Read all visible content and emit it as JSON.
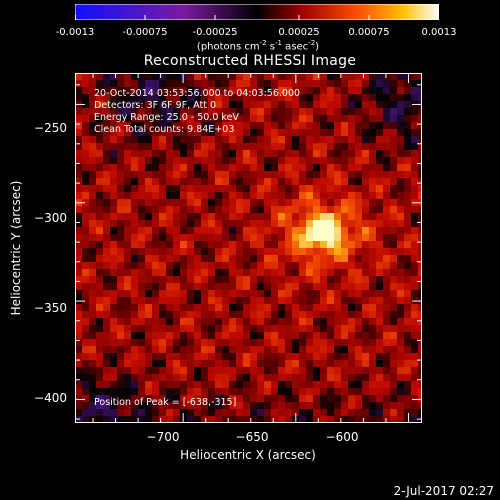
{
  "colorbar": {
    "ticks": [
      "-0.0013",
      "-0.00075",
      "-0.00025",
      "0.00025",
      "0.00075",
      "0.0013"
    ],
    "units_text": "(photons cm",
    "units_sup1": "-2",
    "units_mid": " s",
    "units_sup2": "-1",
    "units_end": " asec",
    "units_sup3": "-2",
    "units_close": ")",
    "range": [
      -0.0013,
      0.0013
    ]
  },
  "annotations": {
    "time_range": "20-Oct-2014 03:53:56.000 to 04:03:56.000",
    "detectors": "Detectors: 3F 6F 9F, Att 0",
    "energy": "Energy Range: 25.0 - 50.0 keV",
    "clean": "Clean    Total counts: 9.84E+03",
    "peak": "Position of Peak = [-638,-315]"
  },
  "footer": "2-Jul-2017 02:27",
  "chart_data": {
    "type": "heatmap",
    "title": "Reconstructed RHESSI Image",
    "xlabel": "Heliocentric X (arcsec)",
    "ylabel": "Heliocentric Y (arcsec)",
    "xlim": [
      -748,
      -594
    ],
    "ylim": [
      -412,
      -234
    ],
    "xticks": [
      -700,
      -650,
      -600
    ],
    "yticks": [
      -250,
      -300,
      -350,
      -400
    ],
    "xtick_labels": [
      "−700",
      "−650",
      "−600"
    ],
    "ytick_labels": [
      "−250",
      "−300",
      "−350",
      "−400"
    ],
    "peak_position": [
      -638,
      -315
    ],
    "colormap": "rainbow-negative / hot-positive",
    "colors": {
      "axes": "#ffffff",
      "background": "#000000"
    }
  }
}
